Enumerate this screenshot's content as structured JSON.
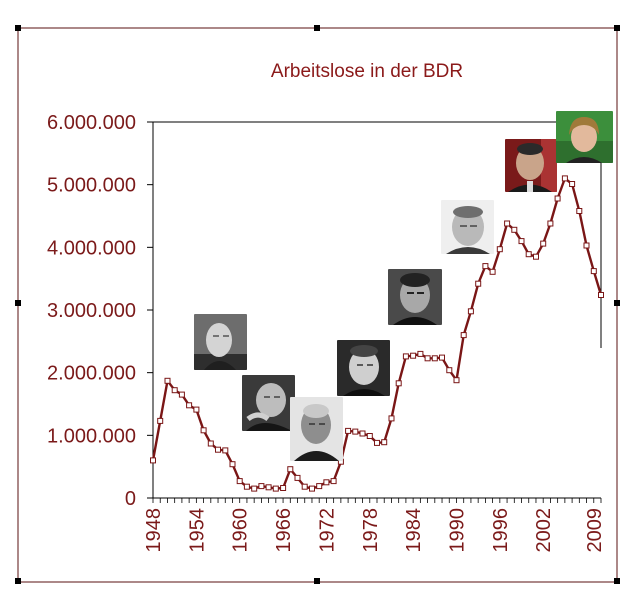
{
  "chart_data": {
    "type": "line",
    "title": "Arbeitslose in der BDR",
    "xlabel": "",
    "ylabel": "",
    "ylim": [
      0,
      6000000
    ],
    "yticks": [
      0,
      1000000,
      2000000,
      3000000,
      4000000,
      5000000,
      6000000
    ],
    "ytick_labels": [
      "0",
      "1.000.000",
      "2.000.000",
      "3.000.000",
      "4.000.000",
      "5.000.000",
      "6.000.000"
    ],
    "xlim": [
      1948,
      2010
    ],
    "xticks": [
      1948,
      1954,
      1960,
      1966,
      1972,
      1978,
      1984,
      1990,
      1996,
      2002,
      2009
    ],
    "xtick_labels": [
      "1948",
      "1954",
      "1960",
      "1966",
      "1972",
      "1978",
      "1984",
      "1990",
      "1996",
      "2002",
      "2009"
    ],
    "grid": false,
    "legend": "none",
    "colors": {
      "line": "#7a1616",
      "text": "#7b1a1a",
      "title": "#8b1a1a",
      "axis": "#000000",
      "frame": "#5a1010"
    },
    "series": [
      {
        "x": [
          1948,
          1949,
          1950,
          1951,
          1952,
          1953,
          1954,
          1955,
          1956,
          1957,
          1958,
          1959,
          1960,
          1961,
          1962,
          1963,
          1964,
          1965,
          1966,
          1967,
          1968,
          1969,
          1970,
          1971,
          1972,
          1973,
          1974,
          1975,
          1976,
          1977,
          1978,
          1979,
          1980,
          1981,
          1982,
          1983,
          1984,
          1985,
          1986,
          1987,
          1988,
          1989,
          1990,
          1991,
          1992,
          1993,
          1994,
          1995,
          1996,
          1997,
          1998,
          1999,
          2000,
          2001,
          2002,
          2003,
          2004,
          2005,
          2006,
          2007,
          2008,
          2009,
          2010
        ],
        "y": [
          600000,
          1230000,
          1870000,
          1720000,
          1650000,
          1480000,
          1410000,
          1080000,
          870000,
          770000,
          760000,
          540000,
          270000,
          180000,
          150000,
          190000,
          170000,
          150000,
          160000,
          460000,
          320000,
          180000,
          150000,
          190000,
          250000,
          270000,
          580000,
          1070000,
          1060000,
          1030000,
          990000,
          880000,
          890000,
          1270000,
          1830000,
          2260000,
          2270000,
          2300000,
          2230000,
          2230000,
          2240000,
          2040000,
          1880000,
          2600000,
          2980000,
          3420000,
          3700000,
          3610000,
          3970000,
          4380000,
          4280000,
          4100000,
          3890000,
          3850000,
          4060000,
          4380000,
          4780000,
          5100000,
          5010000,
          4580000,
          4030000,
          3620000,
          3240000
        ]
      }
    ],
    "portraits": [
      {
        "icon": "portrait-adenauer-icon",
        "name": "adenauer"
      },
      {
        "icon": "portrait-erhard-icon",
        "name": "erhard"
      },
      {
        "icon": "portrait-kiesinger-icon",
        "name": "kiesinger"
      },
      {
        "icon": "portrait-brandt-icon",
        "name": "brandt"
      },
      {
        "icon": "portrait-schmidt-icon",
        "name": "schmidt"
      },
      {
        "icon": "portrait-kohl-icon",
        "name": "kohl"
      },
      {
        "icon": "portrait-schroeder-icon",
        "name": "schroeder"
      },
      {
        "icon": "portrait-merkel-icon",
        "name": "merkel"
      }
    ]
  }
}
